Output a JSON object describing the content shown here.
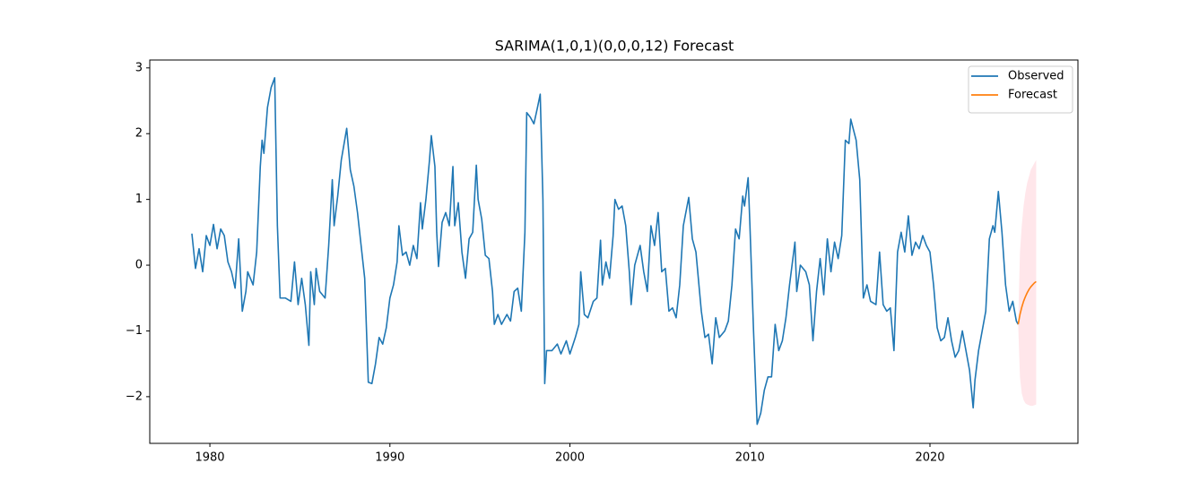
{
  "chart_data": {
    "type": "line",
    "title": "SARIMA(1,0,1)(0,0,0,12) Forecast",
    "xlim": [
      1976.66,
      2028.22
    ],
    "ylim": [
      -2.71,
      3.12
    ],
    "xticks": [
      1980,
      1990,
      2000,
      2010,
      2020
    ],
    "yticks": [
      {
        "value": -2,
        "label": "−2"
      },
      {
        "value": -1,
        "label": "−1"
      },
      0,
      1,
      2,
      3
    ],
    "legend": "upper right",
    "grid": false,
    "band_color": "#ffc0cb",
    "series": [
      {
        "name": "Observed",
        "color": "#1f77b4",
        "x": [
          1979.0,
          1979.2,
          1979.4,
          1979.6,
          1979.8,
          1980.0,
          1980.2,
          1980.4,
          1980.6,
          1980.8,
          1981.0,
          1981.2,
          1981.4,
          1981.6,
          1981.8,
          1982.0,
          1982.1,
          1982.4,
          1982.6,
          1982.8,
          1982.9,
          1983.0,
          1983.2,
          1983.4,
          1983.6,
          1983.75,
          1983.9,
          1984.2,
          1984.5,
          1984.7,
          1984.9,
          1985.1,
          1985.3,
          1985.5,
          1985.6,
          1985.8,
          1985.9,
          1986.1,
          1986.4,
          1986.6,
          1986.8,
          1986.9,
          1987.1,
          1987.3,
          1987.6,
          1987.8,
          1988.0,
          1988.2,
          1988.4,
          1988.6,
          1988.8,
          1989.0,
          1989.2,
          1989.4,
          1989.6,
          1989.8,
          1990.0,
          1990.2,
          1990.4,
          1990.5,
          1990.7,
          1990.9,
          1991.1,
          1991.3,
          1991.5,
          1991.7,
          1991.8,
          1992.0,
          1992.2,
          1992.3,
          1992.5,
          1992.6,
          1992.7,
          1992.9,
          1993.1,
          1993.3,
          1993.5,
          1993.6,
          1993.8,
          1994.0,
          1994.2,
          1994.4,
          1994.6,
          1994.8,
          1994.9,
          1995.1,
          1995.3,
          1995.5,
          1995.7,
          1995.8,
          1996.0,
          1996.2,
          1996.5,
          1996.7,
          1996.9,
          1997.1,
          1997.3,
          1997.5,
          1997.6,
          1997.8,
          1998.0,
          1998.2,
          1998.35,
          1998.5,
          1998.6,
          1998.7,
          1999.0,
          1999.3,
          1999.5,
          1999.8,
          2000.0,
          2000.3,
          2000.5,
          2000.6,
          2000.8,
          2001.0,
          2001.3,
          2001.5,
          2001.7,
          2001.8,
          2002.0,
          2002.2,
          2002.4,
          2002.5,
          2002.7,
          2002.9,
          2003.1,
          2003.3,
          2003.4,
          2003.6,
          2003.9,
          2004.1,
          2004.3,
          2004.5,
          2004.7,
          2004.9,
          2005.1,
          2005.3,
          2005.5,
          2005.7,
          2005.9,
          2006.1,
          2006.3,
          2006.6,
          2006.8,
          2007.0,
          2007.3,
          2007.5,
          2007.7,
          2007.9,
          2008.1,
          2008.3,
          2008.6,
          2008.8,
          2009.0,
          2009.2,
          2009.4,
          2009.6,
          2009.7,
          2009.9,
          2010.0,
          2010.2,
          2010.4,
          2010.6,
          2010.8,
          2011.0,
          2011.2,
          2011.4,
          2011.6,
          2011.8,
          2012.0,
          2012.2,
          2012.5,
          2012.6,
          2012.8,
          2013.1,
          2013.3,
          2013.5,
          2013.7,
          2013.9,
          2014.1,
          2014.3,
          2014.5,
          2014.7,
          2014.9,
          2015.1,
          2015.3,
          2015.5,
          2015.6,
          2015.9,
          2016.1,
          2016.3,
          2016.5,
          2016.7,
          2017.0,
          2017.2,
          2017.4,
          2017.6,
          2017.8,
          2018.0,
          2018.2,
          2018.4,
          2018.6,
          2018.8,
          2019.0,
          2019.2,
          2019.4,
          2019.6,
          2019.8,
          2020.0,
          2020.2,
          2020.4,
          2020.6,
          2020.8,
          2021.0,
          2021.2,
          2021.4,
          2021.6,
          2021.8,
          2022.0,
          2022.2,
          2022.4,
          2022.5,
          2022.7,
          2022.9,
          2023.1,
          2023.3,
          2023.5,
          2023.6,
          2023.8,
          2024.0,
          2024.2,
          2024.4,
          2024.6,
          2024.8,
          2024.9
        ],
        "values": [
          0.48,
          -0.05,
          0.25,
          -0.1,
          0.45,
          0.3,
          0.62,
          0.25,
          0.55,
          0.45,
          0.05,
          -0.1,
          -0.35,
          0.4,
          -0.7,
          -0.4,
          -0.1,
          -0.3,
          0.2,
          1.5,
          1.9,
          1.7,
          2.4,
          2.7,
          2.85,
          0.6,
          -0.5,
          -0.5,
          -0.55,
          0.05,
          -0.6,
          -0.2,
          -0.6,
          -1.22,
          -0.1,
          -0.6,
          -0.05,
          -0.4,
          -0.5,
          0.3,
          1.3,
          0.6,
          1.05,
          1.6,
          2.08,
          1.45,
          1.2,
          0.8,
          0.3,
          -0.2,
          -1.78,
          -1.8,
          -1.5,
          -1.1,
          -1.2,
          -0.95,
          -0.5,
          -0.3,
          0.05,
          0.6,
          0.15,
          0.2,
          0.0,
          0.3,
          0.1,
          0.95,
          0.55,
          1.0,
          1.6,
          1.97,
          1.5,
          0.5,
          -0.02,
          0.65,
          0.8,
          0.6,
          1.5,
          0.6,
          0.95,
          0.2,
          -0.2,
          0.4,
          0.5,
          1.52,
          1.0,
          0.7,
          0.15,
          0.1,
          -0.4,
          -0.9,
          -0.75,
          -0.9,
          -0.75,
          -0.85,
          -0.4,
          -0.35,
          -0.7,
          0.5,
          2.32,
          2.25,
          2.15,
          2.4,
          2.6,
          1.0,
          -1.8,
          -1.3,
          -1.3,
          -1.2,
          -1.35,
          -1.15,
          -1.35,
          -1.1,
          -0.9,
          -0.1,
          -0.75,
          -0.8,
          -0.55,
          -0.5,
          0.38,
          -0.3,
          0.05,
          -0.2,
          0.45,
          1.0,
          0.85,
          0.9,
          0.6,
          -0.1,
          -0.6,
          0.0,
          0.3,
          -0.1,
          -0.4,
          0.6,
          0.3,
          0.8,
          -0.1,
          -0.05,
          -0.7,
          -0.65,
          -0.8,
          -0.3,
          0.6,
          1.03,
          0.4,
          0.2,
          -0.7,
          -1.1,
          -1.05,
          -1.5,
          -0.8,
          -1.1,
          -1.0,
          -0.85,
          -0.3,
          0.55,
          0.4,
          1.05,
          0.9,
          1.33,
          0.6,
          -1.0,
          -2.42,
          -2.25,
          -1.9,
          -1.7,
          -1.7,
          -0.9,
          -1.3,
          -1.15,
          -0.8,
          -0.3,
          0.35,
          -0.4,
          0.0,
          -0.1,
          -0.3,
          -1.15,
          -0.4,
          0.1,
          -0.45,
          0.4,
          -0.1,
          0.35,
          0.1,
          0.45,
          1.9,
          1.85,
          2.22,
          1.9,
          1.3,
          -0.5,
          -0.3,
          -0.55,
          -0.6,
          0.2,
          -0.6,
          -0.7,
          -0.65,
          -1.3,
          0.2,
          0.5,
          0.2,
          0.75,
          0.15,
          0.35,
          0.25,
          0.45,
          0.3,
          0.2,
          -0.3,
          -0.95,
          -1.15,
          -1.1,
          -0.8,
          -1.15,
          -1.4,
          -1.3,
          -1.0,
          -1.3,
          -1.6,
          -2.17,
          -1.75,
          -1.3,
          -1.0,
          -0.7,
          0.4,
          0.6,
          0.5,
          1.12,
          0.5,
          -0.3,
          -0.7,
          -0.55,
          -0.85,
          -0.9
        ]
      },
      {
        "name": "Forecast",
        "color": "#ff7f0e",
        "x": [
          2024.9,
          2025.0,
          2025.1,
          2025.2,
          2025.3,
          2025.4,
          2025.5,
          2025.6,
          2025.7,
          2025.8,
          2025.9
        ],
        "values": [
          -0.9,
          -0.75,
          -0.64,
          -0.55,
          -0.48,
          -0.42,
          -0.37,
          -0.33,
          -0.3,
          -0.27,
          -0.25
        ],
        "ci_lower": [
          -0.9,
          -1.7,
          -1.95,
          -2.05,
          -2.1,
          -2.12,
          -2.13,
          -2.14,
          -2.14,
          -2.13,
          -2.12
        ],
        "ci_upper": [
          -0.9,
          0.2,
          0.6,
          0.9,
          1.1,
          1.25,
          1.35,
          1.45,
          1.5,
          1.55,
          1.6
        ]
      }
    ]
  }
}
